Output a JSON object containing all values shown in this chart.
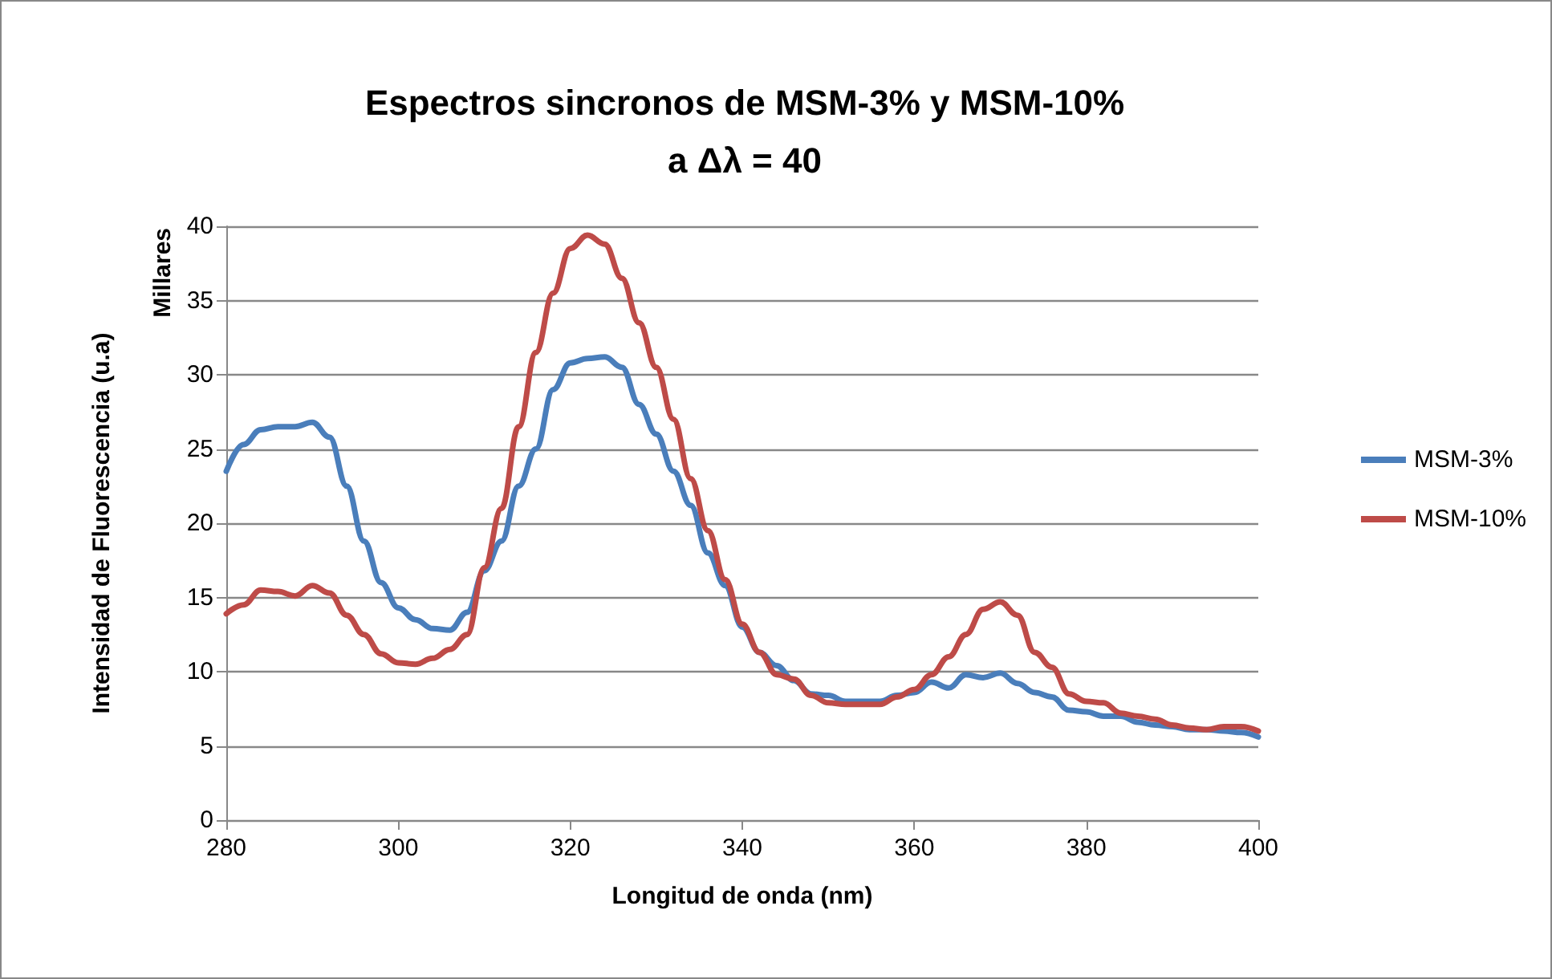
{
  "chart_data": {
    "type": "line",
    "title": "Espectros sincronos de MSM-3% y MSM-10%\na Δλ = 40",
    "xlabel": "Longitud de onda (nm)",
    "ylabel": "Intensidad de Fluorescencia (u.a)",
    "annotations": [
      "Millares"
    ],
    "x": [
      280,
      282,
      284,
      286,
      288,
      290,
      292,
      294,
      296,
      298,
      300,
      302,
      304,
      306,
      308,
      310,
      312,
      314,
      316,
      318,
      320,
      322,
      324,
      326,
      328,
      330,
      332,
      334,
      336,
      338,
      340,
      342,
      344,
      346,
      348,
      350,
      352,
      354,
      356,
      358,
      360,
      362,
      364,
      366,
      368,
      370,
      372,
      374,
      376,
      378,
      380,
      382,
      384,
      386,
      388,
      390,
      392,
      394,
      396,
      398,
      400
    ],
    "series": [
      {
        "name": "MSM-3%",
        "color": "#4a7ebb",
        "values": [
          23.5,
          25.3,
          26.3,
          26.5,
          26.5,
          26.8,
          25.8,
          22.5,
          18.8,
          16,
          14.3,
          13.5,
          12.9,
          12.8,
          14,
          16.8,
          18.8,
          22.5,
          25,
          29,
          30.8,
          31.1,
          31.2,
          30.5,
          28,
          26,
          23.5,
          21.2,
          18,
          15.8,
          13,
          11.3,
          10.4,
          9.4,
          8.5,
          8.4,
          8,
          8,
          8,
          8.4,
          8.6,
          9.3,
          8.9,
          9.8,
          9.6,
          9.9,
          9.2,
          8.6,
          8.3,
          7.4,
          7.3,
          7,
          7,
          6.6,
          6.4,
          6.3,
          6.1,
          6.1,
          6,
          5.9,
          5.6
        ]
      },
      {
        "name": "MSM-10%",
        "color": "#be4b48",
        "values": [
          13.9,
          14.5,
          15.5,
          15.4,
          15.1,
          15.8,
          15.3,
          13.8,
          12.5,
          11.2,
          10.6,
          10.5,
          10.9,
          11.5,
          12.5,
          17,
          21,
          26.5,
          31.5,
          35.5,
          38.5,
          39.4,
          38.8,
          36.5,
          33.5,
          30.5,
          27,
          23,
          19.5,
          16.2,
          13.2,
          11.3,
          9.8,
          9.5,
          8.4,
          7.9,
          7.8,
          7.8,
          7.8,
          8.3,
          8.8,
          9.8,
          11,
          12.5,
          14.2,
          14.7,
          13.8,
          11.3,
          10.3,
          8.5,
          8,
          7.9,
          7.2,
          7,
          6.8,
          6.4,
          6.2,
          6.1,
          6.3,
          6.3,
          6
        ]
      }
    ],
    "xlim": [
      280,
      400
    ],
    "xticks": [
      280,
      300,
      320,
      340,
      360,
      380,
      400
    ],
    "ylim": [
      0,
      40
    ],
    "yticks": [
      0,
      5,
      10,
      15,
      20,
      25,
      30,
      35,
      40
    ],
    "grid": "y",
    "legend": "right",
    "marker": "none",
    "line_style": "solid"
  }
}
